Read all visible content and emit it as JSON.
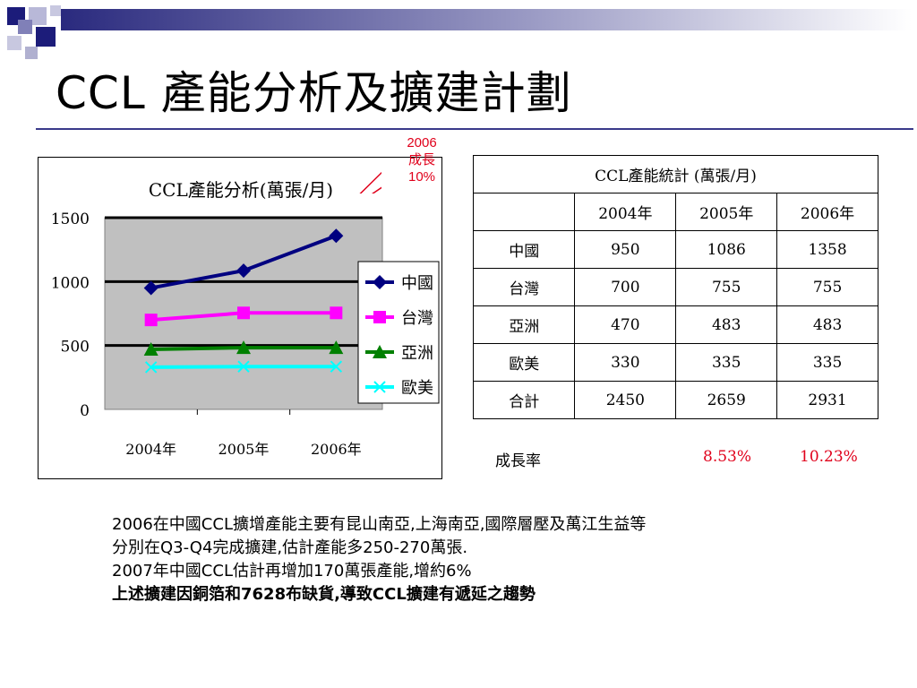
{
  "slide": {
    "title": "CCL 產能分析及擴建計劃",
    "callout": {
      "line1": "2006",
      "line2": "成長",
      "line3": "10%"
    }
  },
  "chart_data": {
    "type": "line",
    "title": "CCL產能分析(萬張/月)",
    "categories": [
      "2004年",
      "2005年",
      "2006年"
    ],
    "ylim": [
      0,
      1500
    ],
    "yticks": [
      "0",
      "500",
      "1000",
      "1500"
    ],
    "grid": true,
    "legend_position": "right",
    "series": [
      {
        "name": "中國",
        "values": [
          950,
          1086,
          1358
        ],
        "color": "#000080",
        "marker": "diamond"
      },
      {
        "name": "台灣",
        "values": [
          700,
          755,
          755
        ],
        "color": "#ff00ff",
        "marker": "square"
      },
      {
        "name": "亞洲",
        "values": [
          470,
          483,
          483
        ],
        "color": "#008000",
        "marker": "triangle"
      },
      {
        "name": "歐美",
        "values": [
          330,
          335,
          335
        ],
        "color": "#00ffff",
        "marker": "x"
      }
    ]
  },
  "table": {
    "caption": "CCL產能統計 (萬張/月)",
    "headers": [
      "",
      "2004年",
      "2005年",
      "2006年"
    ],
    "rows": [
      [
        "中國",
        "950",
        "1086",
        "1358"
      ],
      [
        "台灣",
        "700",
        "755",
        "755"
      ],
      [
        "亞洲",
        "470",
        "483",
        "483"
      ],
      [
        "歐美",
        "330",
        "335",
        "335"
      ],
      [
        "合計",
        "2450",
        "2659",
        "2931"
      ]
    ],
    "growth_label": "成長率",
    "growth_2005": "8.53%",
    "growth_2006": "10.23%"
  },
  "notes": [
    "2006在中國CCL擴增產能主要有昆山南亞,上海南亞,國際層壓及萬江生益等",
    "分別在Q3-Q4完成擴建,估計產能多250-270萬張.",
    "2007年中國CCL估計再增加170萬張產能,增約6%",
    "上述擴建因銅箔和7628布缺貨,導致CCL擴建有遞延之趨勢"
  ],
  "colors": {
    "accent": "#3a3a8a",
    "highlight": "#e0001b",
    "plot_bg": "#c0c0c0"
  }
}
